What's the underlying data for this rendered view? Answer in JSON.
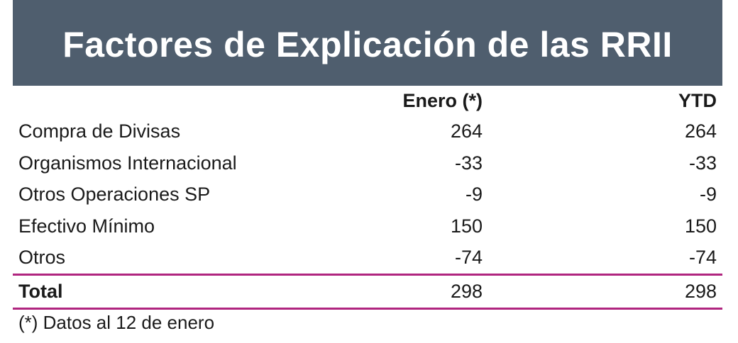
{
  "title": "Factores de Explicación de las RRII",
  "columns": [
    "",
    "Enero (*)",
    "YTD"
  ],
  "rows": [
    {
      "label": "Compra de Divisas",
      "enero": "264",
      "ytd": "264"
    },
    {
      "label": "Organismos Internacional",
      "enero": "-33",
      "ytd": "-33"
    },
    {
      "label": "Otros Operaciones SP",
      "enero": "-9",
      "ytd": "-9"
    },
    {
      "label": "Efectivo Mínimo",
      "enero": "150",
      "ytd": "150"
    },
    {
      "label": "Otros",
      "enero": "-74",
      "ytd": "-74"
    }
  ],
  "total": {
    "label": "Total",
    "enero": "298",
    "ytd": "298"
  },
  "footnote": "(*) Datos al 12 de enero",
  "colors": {
    "header_bg": "#4f5e6e",
    "rule": "#b0257f"
  }
}
